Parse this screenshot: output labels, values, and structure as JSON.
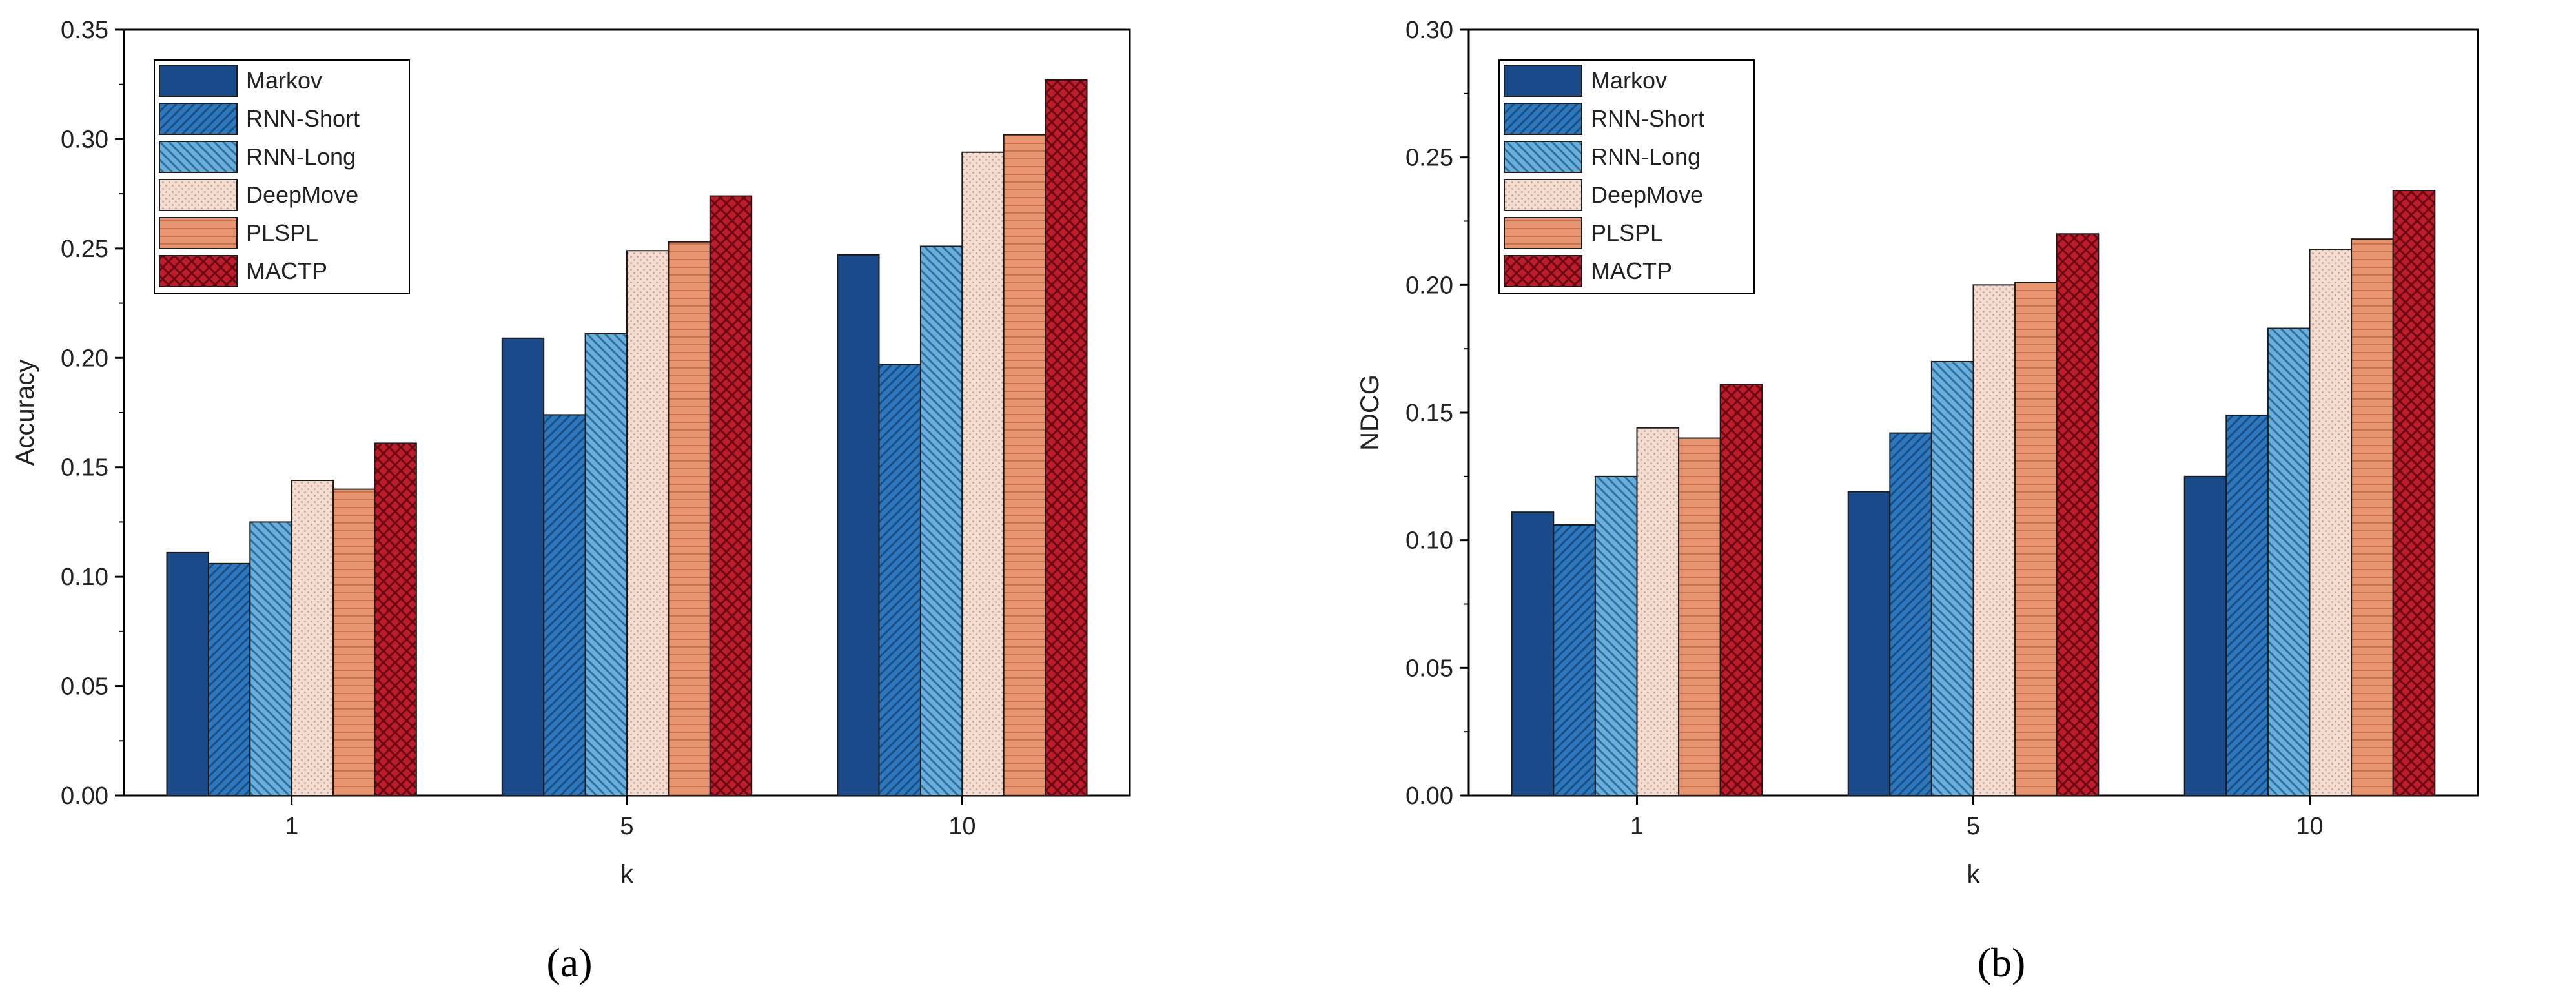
{
  "colors": {
    "Markov": "#1a4a8a",
    "RNN-Short": "#2f77bd",
    "RNN-Long": "#6aaedb",
    "DeepMove": "#f4ddd0",
    "PLSPL": "#e79570",
    "MACTP": "#bd1c2b"
  },
  "chart_data": [
    {
      "type": "bar",
      "caption": "(a)",
      "categories": [
        "1",
        "5",
        "10"
      ],
      "xlabel": "k",
      "ylabel": "Accuracy",
      "ylim": [
        0,
        0.35
      ],
      "yticks": [
        "0.00",
        "0.05",
        "0.10",
        "0.15",
        "0.20",
        "0.25",
        "0.30",
        "0.35"
      ],
      "legend_position": "top-left",
      "series": [
        {
          "name": "Markov",
          "values": [
            0.111,
            0.209,
            0.247
          ]
        },
        {
          "name": "RNN-Short",
          "values": [
            0.106,
            0.174,
            0.197
          ]
        },
        {
          "name": "RNN-Long",
          "values": [
            0.125,
            0.211,
            0.251
          ]
        },
        {
          "name": "DeepMove",
          "values": [
            0.144,
            0.249,
            0.294
          ]
        },
        {
          "name": "PLSPL",
          "values": [
            0.14,
            0.253,
            0.302
          ]
        },
        {
          "name": "MACTP",
          "values": [
            0.161,
            0.274,
            0.327
          ]
        }
      ]
    },
    {
      "type": "bar",
      "caption": "(b)",
      "categories": [
        "1",
        "5",
        "10"
      ],
      "xlabel": "k",
      "ylabel": "NDCG",
      "ylim": [
        0,
        0.3
      ],
      "yticks": [
        "0.00",
        "0.05",
        "0.10",
        "0.15",
        "0.20",
        "0.25",
        "0.30"
      ],
      "legend_position": "top-left",
      "series": [
        {
          "name": "Markov",
          "values": [
            0.111,
            0.119,
            0.125
          ]
        },
        {
          "name": "RNN-Short",
          "values": [
            0.106,
            0.142,
            0.149
          ]
        },
        {
          "name": "RNN-Long",
          "values": [
            0.125,
            0.17,
            0.183
          ]
        },
        {
          "name": "DeepMove",
          "values": [
            0.144,
            0.2,
            0.214
          ]
        },
        {
          "name": "PLSPL",
          "values": [
            0.14,
            0.201,
            0.218
          ]
        },
        {
          "name": "MACTP",
          "values": [
            0.161,
            0.22,
            0.237
          ]
        }
      ]
    }
  ]
}
